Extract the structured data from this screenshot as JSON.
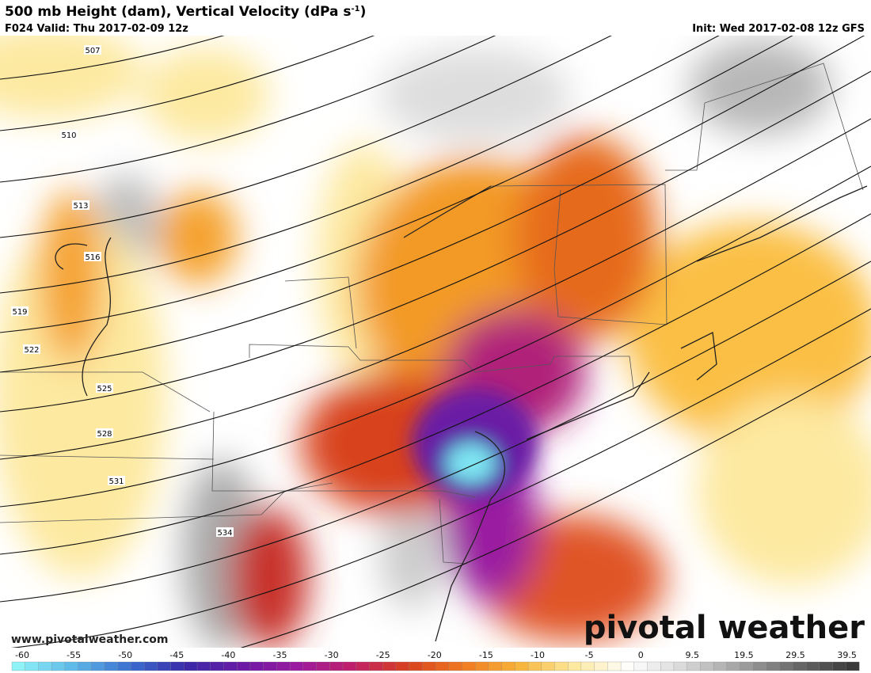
{
  "header": {
    "title": "500 mb Height (dam), Vertical Velocity (dPa s",
    "title_sup": "-1",
    "title_end": ")",
    "valid": "F024 Valid: Thu 2017-02-09 12z",
    "init": "Init: Wed 2017-02-08 12z GFS"
  },
  "contour_labels": [
    "507",
    "510",
    "513",
    "516",
    "519",
    "522",
    "525",
    "528",
    "531",
    "534"
  ],
  "colorbar": {
    "ticks": [
      "-60",
      "-55",
      "-50",
      "-45",
      "-40",
      "-35",
      "-30",
      "-25",
      "-20",
      "-15",
      "-10",
      "-5",
      "0",
      "9.5",
      "19.5",
      "29.5",
      "39.5"
    ]
  },
  "footer": {
    "url": "www.pivotalweather.com",
    "brand": "pivotal weather"
  }
}
